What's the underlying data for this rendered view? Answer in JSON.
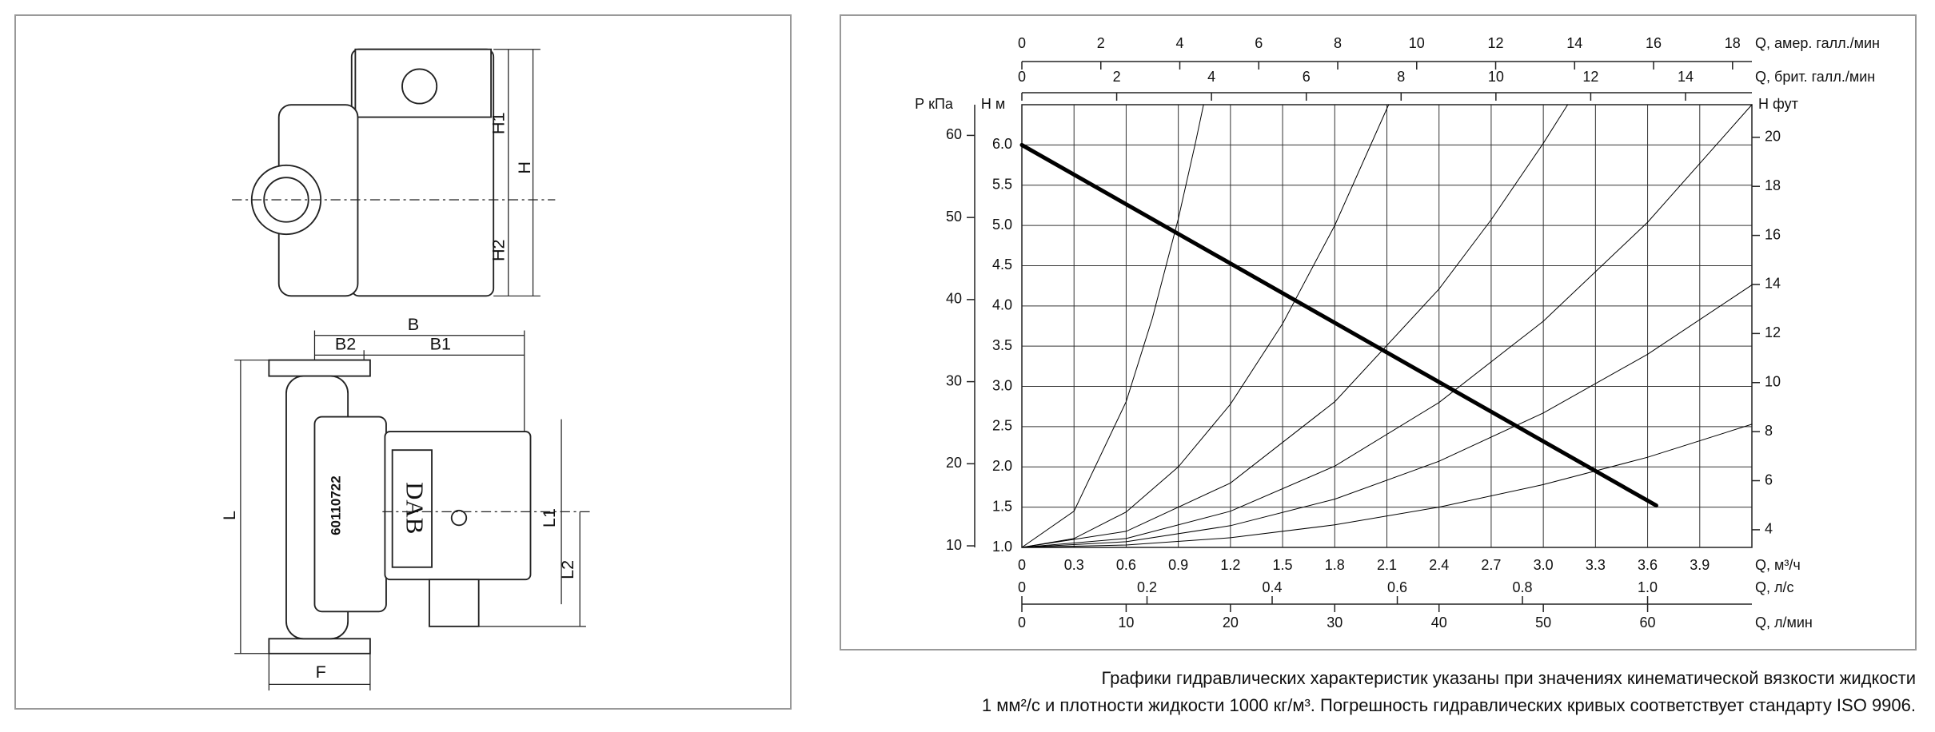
{
  "drawing": {
    "labels": [
      "H1",
      "H",
      "H2",
      "B",
      "B2",
      "B1",
      "L",
      "L1",
      "L2",
      "F"
    ],
    "brand": "DAB",
    "serial": "60110722"
  },
  "chart_data": {
    "type": "line",
    "xlabel": "Q, м³/ч",
    "ylabel": "Н м",
    "xlim": [
      0,
      4.2
    ],
    "xticks": [
      0,
      0.3,
      0.6,
      0.9,
      1.2,
      1.5,
      1.8,
      2.1,
      2.4,
      2.7,
      {
        "value": 3,
        "label": "3.0"
      },
      3.3,
      3.6,
      3.9
    ],
    "ylim": [
      1,
      6.5
    ],
    "yticks": [
      {
        "value": 1,
        "label": "1.0"
      },
      1.5,
      {
        "value": 2,
        "label": "2.0"
      },
      2.5,
      {
        "value": 3,
        "label": "3.0"
      },
      3.5,
      {
        "value": 4,
        "label": "4.0"
      },
      4.5,
      {
        "value": 5,
        "label": "5.0"
      },
      5.5,
      {
        "value": 6,
        "label": "6.0"
      }
    ],
    "grid": true,
    "secondary_axes": [
      {
        "position": "left",
        "label": "Р кПа",
        "lim": [
          9.81,
          63.74
        ],
        "ticks": [
          10,
          20,
          30,
          40,
          50,
          60
        ]
      },
      {
        "position": "right",
        "label": "Н фут",
        "lim": [
          3.28,
          21.33
        ],
        "ticks": [
          4,
          6,
          8,
          10,
          12,
          14,
          16,
          18,
          20
        ]
      },
      {
        "position": "top",
        "label": "Q, амер. галл./мин",
        "lim": [
          0,
          18.49
        ],
        "ticks": [
          0,
          2,
          4,
          6,
          8,
          10,
          12,
          14,
          16,
          18
        ]
      },
      {
        "position": "top",
        "label": "Q, брит. галл./мин",
        "lim": [
          0,
          15.4
        ],
        "ticks": [
          0,
          2,
          4,
          6,
          8,
          10,
          12,
          14
        ]
      },
      {
        "position": "bottom",
        "label": "Q, л/с",
        "lim": [
          0,
          1.1667
        ],
        "ticks": [
          0,
          0.2,
          0.4,
          0.6,
          0.8,
          {
            "value": 1,
            "label": "1.0"
          }
        ]
      },
      {
        "position": "bottom",
        "label": "Q, л/мин",
        "lim": [
          0,
          70
        ],
        "ticks": [
          0,
          10,
          20,
          30,
          40,
          50,
          60
        ]
      }
    ],
    "series": [
      {
        "color": "#000000",
        "line_width": 5,
        "x": [
          0,
          3.65
        ],
        "values": [
          6.0,
          1.52
        ]
      },
      {
        "color": "#000000",
        "line_width": 1,
        "x": [
          0,
          0.3,
          0.6,
          0.75,
          0.9,
          1.0,
          1.045
        ],
        "values": [
          1.0,
          1.45,
          2.81,
          3.84,
          5.08,
          6.04,
          6.5
        ]
      },
      {
        "color": "#000000",
        "line_width": 1,
        "x": [
          0,
          0.3,
          0.6,
          0.9,
          1.2,
          1.5,
          1.8,
          2.11
        ],
        "values": [
          1.0,
          1.11,
          1.44,
          2.0,
          2.78,
          3.78,
          5.0,
          6.5
        ]
      },
      {
        "color": "#000000",
        "line_width": 1,
        "x": [
          0,
          0.6,
          1.2,
          1.8,
          2.4,
          2.7,
          3.0,
          3.14
        ],
        "values": [
          1.0,
          1.2,
          1.8,
          2.81,
          4.21,
          5.07,
          6.02,
          6.5
        ]
      },
      {
        "color": "#000000",
        "line_width": 1,
        "x": [
          0,
          0.6,
          1.2,
          1.8,
          2.4,
          3.0,
          3.6,
          4.2
        ],
        "values": [
          1.0,
          1.11,
          1.45,
          2.01,
          2.8,
          3.81,
          5.04,
          6.5
        ]
      },
      {
        "color": "#000000",
        "line_width": 1,
        "x": [
          0,
          0.6,
          1.2,
          1.8,
          2.4,
          3.0,
          3.6,
          4.2
        ],
        "values": [
          1.0,
          1.07,
          1.27,
          1.6,
          2.07,
          2.67,
          3.4,
          4.26
        ]
      },
      {
        "color": "#000000",
        "line_width": 1,
        "x": [
          0,
          0.6,
          1.2,
          1.8,
          2.4,
          3.0,
          3.6,
          4.2
        ],
        "values": [
          1.0,
          1.03,
          1.12,
          1.28,
          1.5,
          1.78,
          2.12,
          2.53
        ]
      }
    ]
  },
  "caption": [
    "Графики гидравлических характеристик указаны при значениях кинематической вязкости жидкости",
    "1 мм²/с и плотности жидкости 1000 кг/м³. Погрешность гидравлических кривых соответствует стандарту ISO 9906."
  ]
}
